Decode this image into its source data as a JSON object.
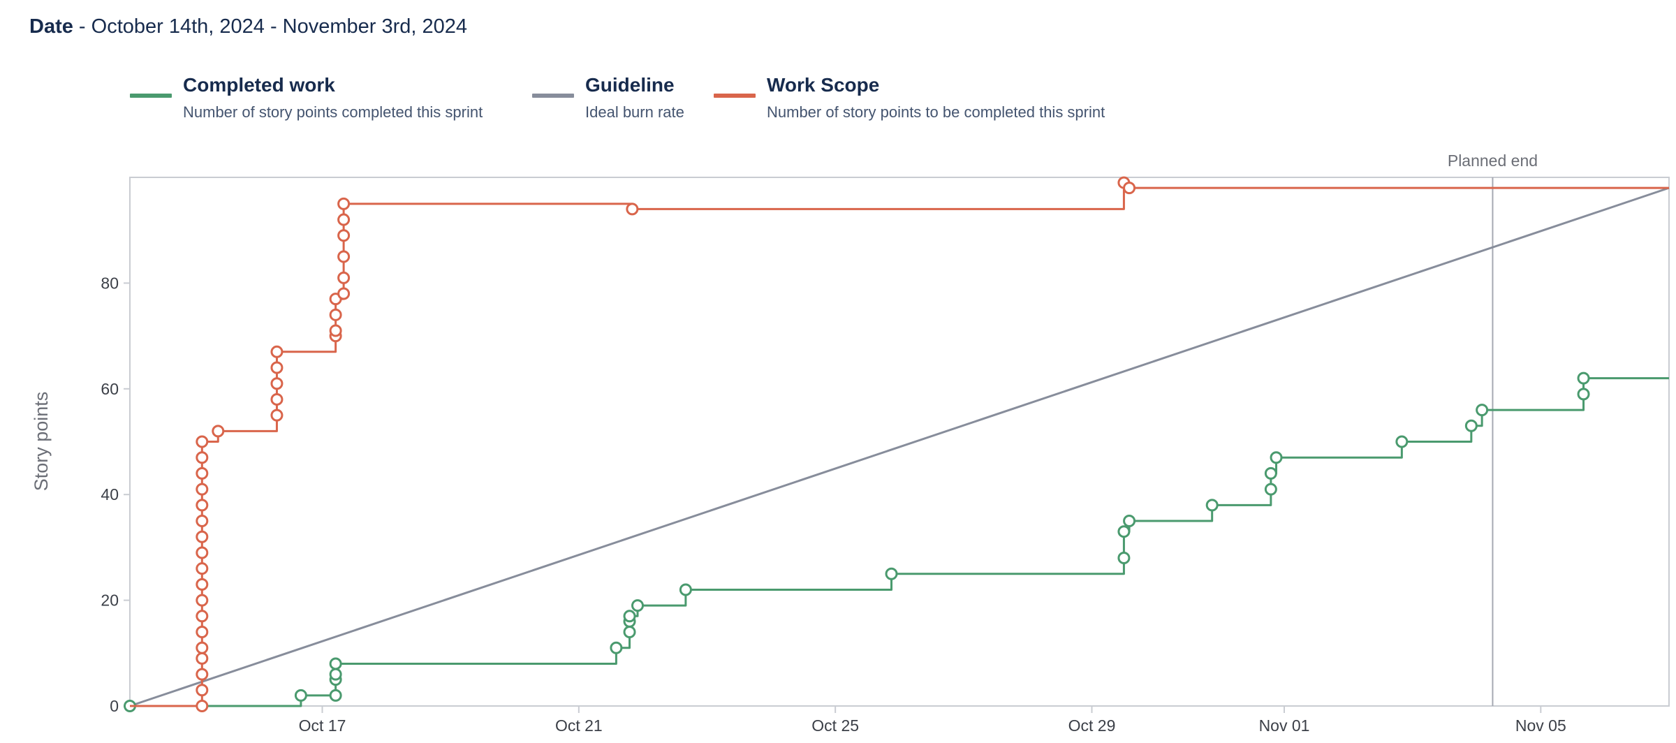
{
  "header": {
    "date_label": "Date",
    "date_range": " - October 14th, 2024 - November 3rd, 2024"
  },
  "legend": [
    {
      "name": "Completed work",
      "description": "Number of story points completed this sprint",
      "color": "#4a9a6e"
    },
    {
      "name": "Guideline",
      "description": "Ideal burn rate",
      "color": "#878d9b"
    },
    {
      "name": "Work Scope",
      "description": "Number of story points to be completed this sprint",
      "color": "#d9654b"
    }
  ],
  "chart_data": {
    "type": "line",
    "title": "",
    "xlabel": "",
    "ylabel": "Story points",
    "x_axis": {
      "type": "date",
      "start": "2024-10-14",
      "end": "2024-11-07",
      "ticks": [
        "Oct 17",
        "Oct 21",
        "Oct 25",
        "Oct 29",
        "Nov 01",
        "Nov 05"
      ],
      "tick_dates": [
        "2024-10-17",
        "2024-10-21",
        "2024-10-25",
        "2024-10-29",
        "2024-11-01",
        "2024-11-05"
      ]
    },
    "y_axis": {
      "min": 0,
      "max": 100,
      "ticks": [
        0,
        20,
        40,
        60,
        80
      ]
    },
    "annotations": [
      {
        "type": "vertical-line",
        "date": "2024-11-04 06:00",
        "label": "Planned end"
      }
    ],
    "grid": false,
    "legend_position": "top-left",
    "series": [
      {
        "name": "Work Scope",
        "color": "#d9654b",
        "style": "step",
        "points": [
          [
            "2024-10-14 00:00",
            0
          ],
          [
            "2024-10-15 03:00",
            0
          ],
          [
            "2024-10-15 03:00",
            3
          ],
          [
            "2024-10-15 03:00",
            6
          ],
          [
            "2024-10-15 03:00",
            9
          ],
          [
            "2024-10-15 03:00",
            11
          ],
          [
            "2024-10-15 03:00",
            14
          ],
          [
            "2024-10-15 03:00",
            17
          ],
          [
            "2024-10-15 03:00",
            20
          ],
          [
            "2024-10-15 03:00",
            23
          ],
          [
            "2024-10-15 03:00",
            26
          ],
          [
            "2024-10-15 03:00",
            29
          ],
          [
            "2024-10-15 03:00",
            32
          ],
          [
            "2024-10-15 03:00",
            35
          ],
          [
            "2024-10-15 03:00",
            38
          ],
          [
            "2024-10-15 03:00",
            41
          ],
          [
            "2024-10-15 03:00",
            44
          ],
          [
            "2024-10-15 03:00",
            47
          ],
          [
            "2024-10-15 03:00",
            50
          ],
          [
            "2024-10-15 09:00",
            52
          ],
          [
            "2024-10-16 07:00",
            55
          ],
          [
            "2024-10-16 07:00",
            58
          ],
          [
            "2024-10-16 07:00",
            61
          ],
          [
            "2024-10-16 07:00",
            64
          ],
          [
            "2024-10-16 07:00",
            67
          ],
          [
            "2024-10-17 05:00",
            70
          ],
          [
            "2024-10-17 05:00",
            71
          ],
          [
            "2024-10-17 05:00",
            74
          ],
          [
            "2024-10-17 05:00",
            77
          ],
          [
            "2024-10-17 08:00",
            78
          ],
          [
            "2024-10-17 08:00",
            81
          ],
          [
            "2024-10-17 08:00",
            85
          ],
          [
            "2024-10-17 08:00",
            89
          ],
          [
            "2024-10-17 08:00",
            92
          ],
          [
            "2024-10-17 08:00",
            95
          ],
          [
            "2024-10-21 20:00",
            94
          ],
          [
            "2024-10-29 12:00",
            99
          ],
          [
            "2024-10-29 14:00",
            98
          ],
          [
            "2024-11-07 00:00",
            98
          ]
        ],
        "markers": [
          [
            "2024-10-15 03:00",
            0
          ],
          [
            "2024-10-15 03:00",
            3
          ],
          [
            "2024-10-15 03:00",
            6
          ],
          [
            "2024-10-15 03:00",
            9
          ],
          [
            "2024-10-15 03:00",
            11
          ],
          [
            "2024-10-15 03:00",
            14
          ],
          [
            "2024-10-15 03:00",
            17
          ],
          [
            "2024-10-15 03:00",
            20
          ],
          [
            "2024-10-15 03:00",
            23
          ],
          [
            "2024-10-15 03:00",
            26
          ],
          [
            "2024-10-15 03:00",
            29
          ],
          [
            "2024-10-15 03:00",
            32
          ],
          [
            "2024-10-15 03:00",
            35
          ],
          [
            "2024-10-15 03:00",
            38
          ],
          [
            "2024-10-15 03:00",
            41
          ],
          [
            "2024-10-15 03:00",
            44
          ],
          [
            "2024-10-15 03:00",
            47
          ],
          [
            "2024-10-15 03:00",
            50
          ],
          [
            "2024-10-15 09:00",
            52
          ],
          [
            "2024-10-16 07:00",
            55
          ],
          [
            "2024-10-16 07:00",
            58
          ],
          [
            "2024-10-16 07:00",
            61
          ],
          [
            "2024-10-16 07:00",
            64
          ],
          [
            "2024-10-16 07:00",
            67
          ],
          [
            "2024-10-17 05:00",
            70
          ],
          [
            "2024-10-17 05:00",
            71
          ],
          [
            "2024-10-17 05:00",
            74
          ],
          [
            "2024-10-17 05:00",
            77
          ],
          [
            "2024-10-17 08:00",
            78
          ],
          [
            "2024-10-17 08:00",
            81
          ],
          [
            "2024-10-17 08:00",
            85
          ],
          [
            "2024-10-17 08:00",
            89
          ],
          [
            "2024-10-17 08:00",
            92
          ],
          [
            "2024-10-17 08:00",
            95
          ],
          [
            "2024-10-21 20:00",
            94
          ],
          [
            "2024-10-29 12:00",
            99
          ],
          [
            "2024-10-29 14:00",
            98
          ]
        ]
      },
      {
        "name": "Completed work",
        "color": "#4a9a6e",
        "style": "step",
        "points": [
          [
            "2024-10-14 00:00",
            0
          ],
          [
            "2024-10-16 16:00",
            0
          ],
          [
            "2024-10-16 16:00",
            2
          ],
          [
            "2024-10-17 05:00",
            2
          ],
          [
            "2024-10-17 05:00",
            5
          ],
          [
            "2024-10-17 05:00",
            6
          ],
          [
            "2024-10-17 05:00",
            8
          ],
          [
            "2024-10-21 14:00",
            8
          ],
          [
            "2024-10-21 14:00",
            11
          ],
          [
            "2024-10-21 19:00",
            11
          ],
          [
            "2024-10-21 19:00",
            14
          ],
          [
            "2024-10-21 19:00",
            16
          ],
          [
            "2024-10-21 19:00",
            17
          ],
          [
            "2024-10-21 22:00",
            19
          ],
          [
            "2024-10-22 16:00",
            19
          ],
          [
            "2024-10-22 16:00",
            22
          ],
          [
            "2024-10-25 21:00",
            22
          ],
          [
            "2024-10-25 21:00",
            25
          ],
          [
            "2024-10-29 12:00",
            25
          ],
          [
            "2024-10-29 12:00",
            28
          ],
          [
            "2024-10-29 12:00",
            33
          ],
          [
            "2024-10-29 14:00",
            35
          ],
          [
            "2024-10-30 21:00",
            35
          ],
          [
            "2024-10-30 21:00",
            38
          ],
          [
            "2024-10-31 19:00",
            38
          ],
          [
            "2024-10-31 19:00",
            41
          ],
          [
            "2024-10-31 19:00",
            44
          ],
          [
            "2024-10-31 21:00",
            47
          ],
          [
            "2024-11-02 20:00",
            47
          ],
          [
            "2024-11-02 20:00",
            50
          ],
          [
            "2024-11-03 22:00",
            50
          ],
          [
            "2024-11-03 22:00",
            53
          ],
          [
            "2024-11-04 02:00",
            53
          ],
          [
            "2024-11-04 02:00",
            56
          ],
          [
            "2024-11-05 16:00",
            56
          ],
          [
            "2024-11-05 16:00",
            59
          ],
          [
            "2024-11-05 16:00",
            62
          ],
          [
            "2024-11-07 00:00",
            62
          ]
        ],
        "markers": [
          [
            "2024-10-14 00:00",
            0
          ],
          [
            "2024-10-16 16:00",
            2
          ],
          [
            "2024-10-17 05:00",
            2
          ],
          [
            "2024-10-17 05:00",
            5
          ],
          [
            "2024-10-17 05:00",
            6
          ],
          [
            "2024-10-17 05:00",
            8
          ],
          [
            "2024-10-21 14:00",
            11
          ],
          [
            "2024-10-21 19:00",
            14
          ],
          [
            "2024-10-21 19:00",
            16
          ],
          [
            "2024-10-21 19:00",
            17
          ],
          [
            "2024-10-21 22:00",
            19
          ],
          [
            "2024-10-22 16:00",
            22
          ],
          [
            "2024-10-25 21:00",
            25
          ],
          [
            "2024-10-29 12:00",
            28
          ],
          [
            "2024-10-29 12:00",
            33
          ],
          [
            "2024-10-29 14:00",
            35
          ],
          [
            "2024-10-30 21:00",
            38
          ],
          [
            "2024-10-31 19:00",
            41
          ],
          [
            "2024-10-31 19:00",
            44
          ],
          [
            "2024-10-31 21:00",
            47
          ],
          [
            "2024-11-02 20:00",
            50
          ],
          [
            "2024-11-03 22:00",
            53
          ],
          [
            "2024-11-04 02:00",
            56
          ],
          [
            "2024-11-05 16:00",
            59
          ],
          [
            "2024-11-05 16:00",
            62
          ]
        ]
      },
      {
        "name": "Guideline",
        "color": "#878d9b",
        "style": "linear",
        "points": [
          [
            "2024-10-14 00:00",
            0
          ],
          [
            "2024-11-07 00:00",
            98
          ]
        ]
      }
    ]
  }
}
